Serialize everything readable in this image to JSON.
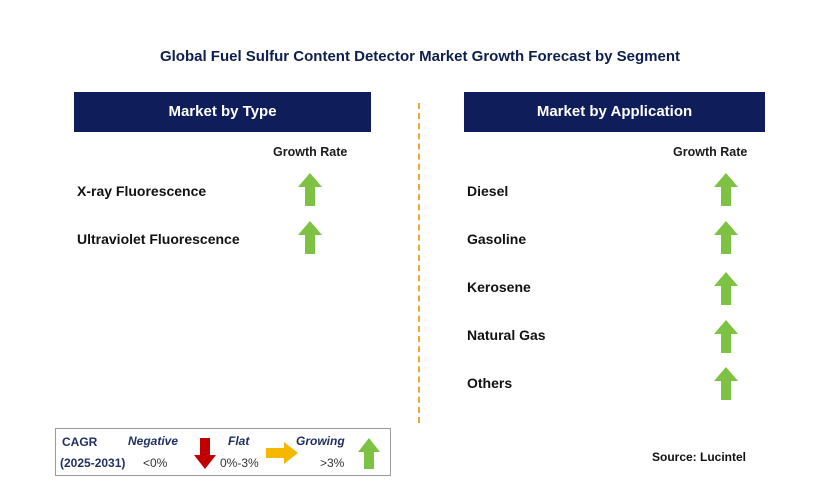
{
  "title": "Global Fuel Sulfur Content Detector Market Growth Forecast by Segment",
  "left_panel": {
    "header": "Market by Type",
    "column_header": "Growth Rate",
    "rows": [
      {
        "label": "X-ray Fluorescence",
        "trend": "growing"
      },
      {
        "label": "Ultraviolet Fluorescence",
        "trend": "growing"
      }
    ]
  },
  "right_panel": {
    "header": "Market by Application",
    "column_header": "Growth Rate",
    "rows": [
      {
        "label": "Diesel",
        "trend": "growing"
      },
      {
        "label": "Gasoline",
        "trend": "growing"
      },
      {
        "label": "Kerosene",
        "trend": "growing"
      },
      {
        "label": "Natural Gas",
        "trend": "growing"
      },
      {
        "label": "Others",
        "trend": "growing"
      }
    ]
  },
  "legend": {
    "cagr_label": "CAGR",
    "period": "(2025-2031)",
    "negative": {
      "label": "Negative",
      "range": "<0%",
      "icon": "down-arrow-red"
    },
    "flat": {
      "label": "Flat",
      "range": "0%-3%",
      "icon": "right-arrow-yellow"
    },
    "growing": {
      "label": "Growing",
      "range": ">3%",
      "icon": "up-arrow-green"
    }
  },
  "source": "Source: Lucintel",
  "colors": {
    "header_bg": "#0f1e5a",
    "growing": "#7dc242",
    "negative": "#c00000",
    "flat": "#f5b800",
    "divider": "#f0a830"
  }
}
